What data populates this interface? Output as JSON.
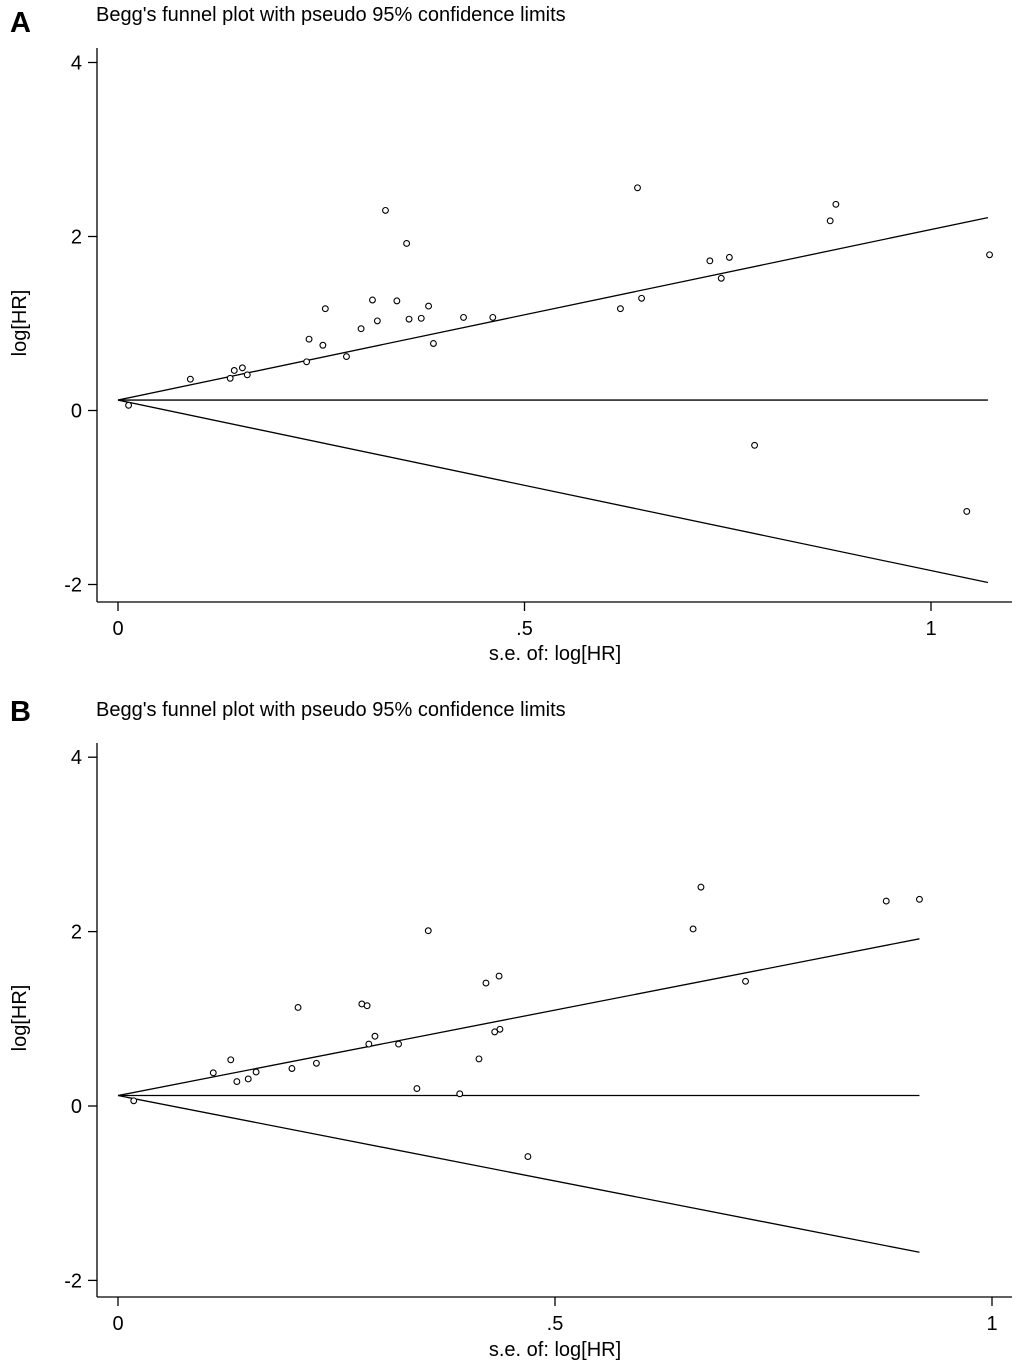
{
  "chart_data": [
    {
      "type": "scatter",
      "panel_label": "A",
      "title": "Begg's funnel plot with pseudo 95% confidence limits",
      "xlabel": "s.e. of: log[HR]",
      "ylabel": "log[HR]",
      "xlim": [
        0,
        1.07
      ],
      "ylim": [
        -2.2,
        4.3
      ],
      "xticks": [
        0,
        0.5,
        1
      ],
      "xtick_labels": [
        "0",
        ".5",
        "1"
      ],
      "yticks": [
        -2,
        0,
        2,
        4
      ],
      "ytick_labels": [
        "-2",
        "0",
        "2",
        "4"
      ],
      "pooled_estimate": 0.12,
      "ci_xmax": 1.07,
      "points": [
        {
          "x": 0.013,
          "y": 0.06
        },
        {
          "x": 0.089,
          "y": 0.36
        },
        {
          "x": 0.138,
          "y": 0.37
        },
        {
          "x": 0.143,
          "y": 0.46
        },
        {
          "x": 0.153,
          "y": 0.49
        },
        {
          "x": 0.159,
          "y": 0.41
        },
        {
          "x": 0.232,
          "y": 0.56
        },
        {
          "x": 0.235,
          "y": 0.82
        },
        {
          "x": 0.252,
          "y": 0.75
        },
        {
          "x": 0.255,
          "y": 1.17
        },
        {
          "x": 0.281,
          "y": 0.62
        },
        {
          "x": 0.299,
          "y": 0.94
        },
        {
          "x": 0.313,
          "y": 1.27
        },
        {
          "x": 0.319,
          "y": 1.03
        },
        {
          "x": 0.329,
          "y": 2.3
        },
        {
          "x": 0.343,
          "y": 1.26
        },
        {
          "x": 0.355,
          "y": 1.92
        },
        {
          "x": 0.358,
          "y": 1.05
        },
        {
          "x": 0.373,
          "y": 1.06
        },
        {
          "x": 0.382,
          "y": 1.2
        },
        {
          "x": 0.388,
          "y": 0.77
        },
        {
          "x": 0.425,
          "y": 1.07
        },
        {
          "x": 0.461,
          "y": 1.07
        },
        {
          "x": 0.618,
          "y": 1.17
        },
        {
          "x": 0.639,
          "y": 2.56
        },
        {
          "x": 0.644,
          "y": 1.29
        },
        {
          "x": 0.728,
          "y": 1.72
        },
        {
          "x": 0.742,
          "y": 1.52
        },
        {
          "x": 0.752,
          "y": 1.76
        },
        {
          "x": 0.783,
          "y": -0.4
        },
        {
          "x": 0.876,
          "y": 2.18
        },
        {
          "x": 0.883,
          "y": 2.37
        },
        {
          "x": 1.044,
          "y": -1.16
        },
        {
          "x": 1.072,
          "y": 1.79
        }
      ]
    },
    {
      "type": "scatter",
      "panel_label": "B",
      "title": "Begg's funnel plot with pseudo 95% confidence limits",
      "xlabel": "s.e. of: log[HR]",
      "ylabel": "log[HR]",
      "xlim": [
        0,
        1
      ],
      "ylim": [
        -2.2,
        4.3
      ],
      "xticks": [
        0,
        0.5,
        1
      ],
      "xtick_labels": [
        "0",
        ".5",
        "1"
      ],
      "yticks": [
        -2,
        0,
        2,
        4
      ],
      "ytick_labels": [
        "-2",
        "0",
        "2",
        "4"
      ],
      "pooled_estimate": 0.12,
      "ci_xmax": 0.917,
      "points": [
        {
          "x": 0.018,
          "y": 0.06
        },
        {
          "x": 0.109,
          "y": 0.38
        },
        {
          "x": 0.129,
          "y": 0.53
        },
        {
          "x": 0.136,
          "y": 0.28
        },
        {
          "x": 0.149,
          "y": 0.31
        },
        {
          "x": 0.158,
          "y": 0.39
        },
        {
          "x": 0.199,
          "y": 0.43
        },
        {
          "x": 0.206,
          "y": 1.13
        },
        {
          "x": 0.227,
          "y": 0.49
        },
        {
          "x": 0.279,
          "y": 1.17
        },
        {
          "x": 0.285,
          "y": 1.15
        },
        {
          "x": 0.287,
          "y": 0.71
        },
        {
          "x": 0.294,
          "y": 0.8
        },
        {
          "x": 0.321,
          "y": 0.71
        },
        {
          "x": 0.342,
          "y": 0.2
        },
        {
          "x": 0.355,
          "y": 2.01
        },
        {
          "x": 0.391,
          "y": 0.14
        },
        {
          "x": 0.413,
          "y": 0.54
        },
        {
          "x": 0.421,
          "y": 1.41
        },
        {
          "x": 0.431,
          "y": 0.85
        },
        {
          "x": 0.436,
          "y": 1.49
        },
        {
          "x": 0.437,
          "y": 0.88
        },
        {
          "x": 0.469,
          "y": -0.58
        },
        {
          "x": 0.658,
          "y": 2.03
        },
        {
          "x": 0.667,
          "y": 2.51
        },
        {
          "x": 0.718,
          "y": 1.43
        },
        {
          "x": 0.879,
          "y": 2.35
        },
        {
          "x": 0.917,
          "y": 2.37
        }
      ]
    }
  ]
}
